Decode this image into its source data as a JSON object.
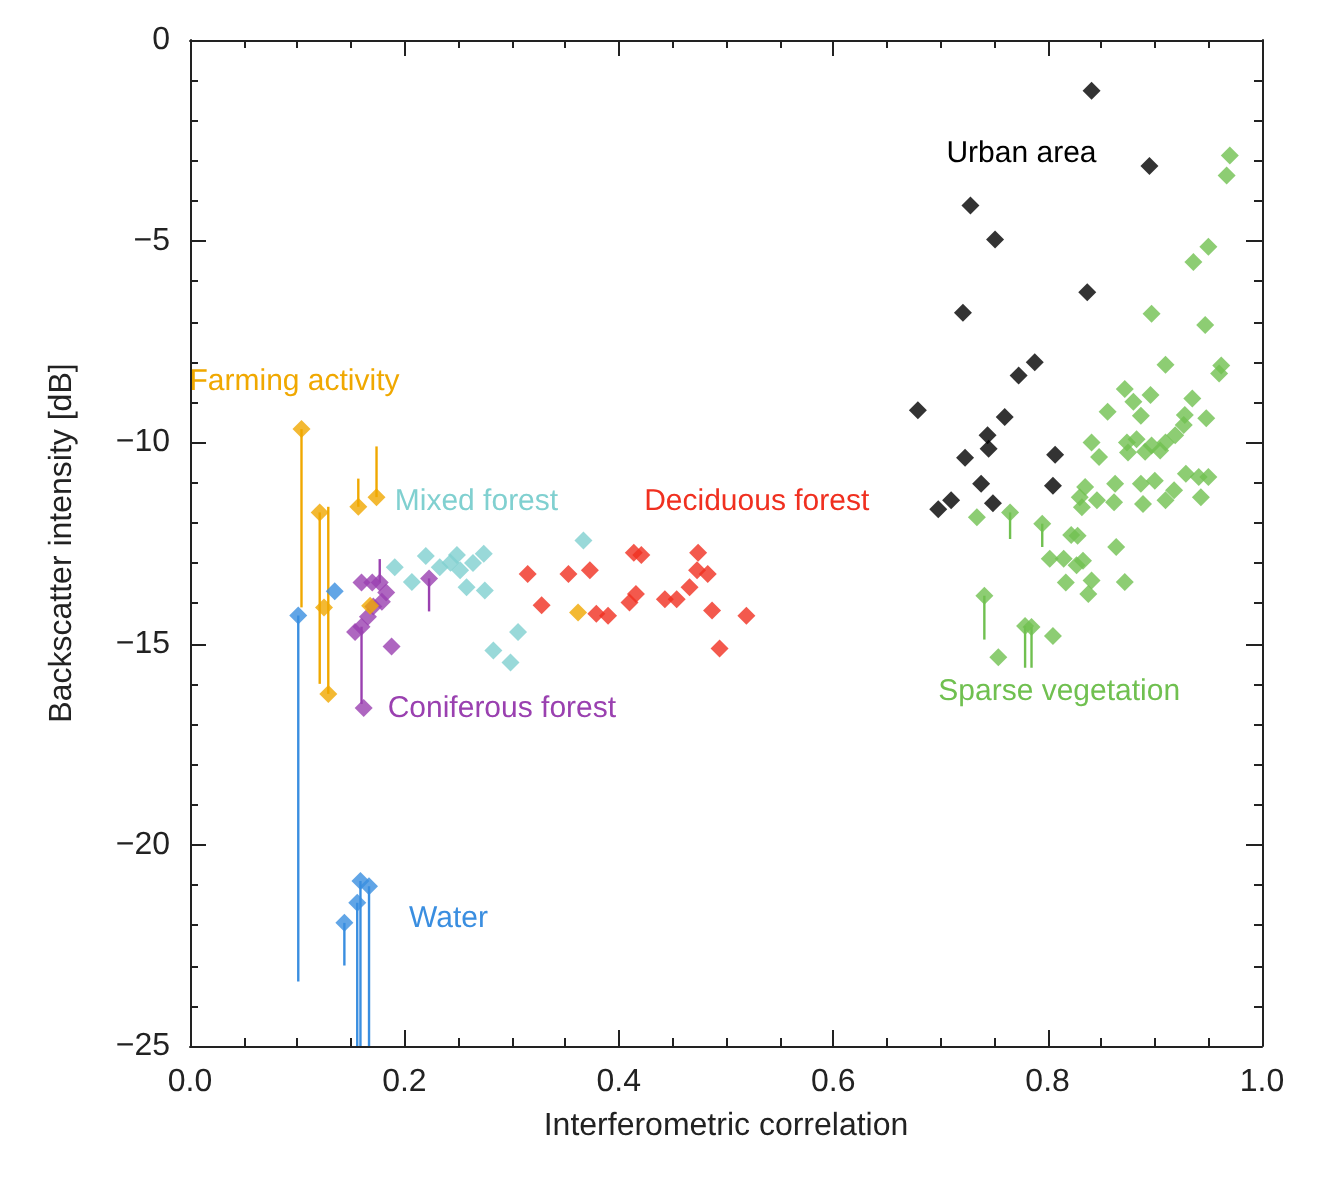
{
  "chart_data": {
    "type": "scatter",
    "xlabel": "Interferometric correlation",
    "ylabel": "Backscatter intensity [dB]",
    "xlim": [
      0,
      1
    ],
    "xticks": [
      {
        "value": 0,
        "label": "0.0"
      },
      {
        "value": 0.2,
        "label": "0.2"
      },
      {
        "value": 0.4,
        "label": "0.4"
      },
      {
        "value": 0.6,
        "label": "0.6"
      },
      {
        "value": 0.8,
        "label": "0.8"
      },
      {
        "value": 1,
        "label": "1.0"
      }
    ],
    "ylim": [
      -25,
      0
    ],
    "yticks": [
      {
        "value": -25,
        "label": "−25"
      },
      {
        "value": -20,
        "label": "−20"
      },
      {
        "value": -15,
        "label": "−15"
      },
      {
        "value": -10,
        "label": "−10"
      },
      {
        "value": -5,
        "label": "−5"
      },
      {
        "value": 0,
        "label": "0"
      }
    ],
    "grid": false,
    "marker": "diamond",
    "series": [
      {
        "name": "Farming activity",
        "color": "#f0a800",
        "x": [
          0.104,
          0.121,
          0.125,
          0.129,
          0.157,
          0.174,
          0.168,
          0.362
        ],
        "values": [
          -9.67,
          -11.74,
          -14.1,
          -16.25,
          -11.6,
          -11.36,
          -14.06,
          -14.23
        ],
        "errors": [
          [
            -14.1,
            -9.67
          ],
          [
            -16,
            -11.74
          ],
          null,
          [
            -16.25,
            -11.6
          ],
          [
            -11.6,
            -10.9
          ],
          [
            -11.36,
            -10.1
          ],
          null,
          null
        ]
      },
      {
        "name": "Mixed forest",
        "color": "#80d0d0",
        "x": [
          0.191,
          0.207,
          0.22,
          0.233,
          0.243,
          0.249,
          0.252,
          0.258,
          0.264,
          0.274,
          0.275,
          0.283,
          0.299,
          0.306,
          0.367
        ],
        "values": [
          -13.1,
          -13.47,
          -12.82,
          -13.1,
          -12.99,
          -12.8,
          -13.18,
          -13.6,
          -13,
          -12.77,
          -13.68,
          -15.17,
          -15.47,
          -14.71,
          -12.44
        ]
      },
      {
        "name": "Deciduous forest",
        "color": "#f03020",
        "x": [
          0.315,
          0.328,
          0.353,
          0.373,
          0.379,
          0.39,
          0.414,
          0.421,
          0.41,
          0.416,
          0.443,
          0.454,
          0.474,
          0.473,
          0.483,
          0.466,
          0.487,
          0.494,
          0.519
        ],
        "values": [
          -13.27,
          -14.05,
          -13.27,
          -13.18,
          -14.26,
          -14.31,
          -12.74,
          -12.8,
          -13.98,
          -13.77,
          -13.9,
          -13.9,
          -12.74,
          -13.18,
          -13.27,
          -13.6,
          -14.18,
          -15.12,
          -14.31
        ]
      },
      {
        "name": "Coniferous forest",
        "color": "#9a40b0",
        "x": [
          0.16,
          0.17,
          0.177,
          0.183,
          0.179,
          0.171,
          0.166,
          0.16,
          0.154,
          0.188,
          0.223,
          0.162
        ],
        "values": [
          -13.48,
          -13.48,
          -13.48,
          -13.73,
          -13.96,
          -14.08,
          -14.33,
          -14.58,
          -14.71,
          -15.07,
          -13.38,
          -16.6
        ],
        "errors": [
          null,
          null,
          [
            -13.48,
            -12.9
          ],
          null,
          null,
          null,
          null,
          [
            -16.5,
            -14.58
          ],
          null,
          null,
          [
            -14.2,
            -13.38
          ],
          null
        ]
      },
      {
        "name": "Water",
        "color": "#3a8ee0",
        "x": [
          0.101,
          0.135,
          0.144,
          0.156,
          0.159,
          0.167
        ],
        "values": [
          -14.3,
          -13.7,
          -21.94,
          -21.44,
          -20.9,
          -21.03
        ],
        "errors": [
          [
            -23.4,
            -14.3
          ],
          null,
          [
            -23,
            -21.94
          ],
          [
            -25,
            -21.44
          ],
          [
            -25,
            -20.9
          ],
          [
            -25,
            -21.03
          ]
        ]
      },
      {
        "name": "Urban area",
        "color": "#000000",
        "x": [
          0.841,
          0.895,
          0.728,
          0.751,
          0.837,
          0.721,
          0.788,
          0.773,
          0.679,
          0.76,
          0.744,
          0.723,
          0.745,
          0.807,
          0.738,
          0.805,
          0.749,
          0.71,
          0.698
        ],
        "values": [
          -1.26,
          -3.13,
          -4.11,
          -4.96,
          -6.27,
          -6.78,
          -8.01,
          -8.34,
          -9.2,
          -9.37,
          -9.82,
          -10.38,
          -10.16,
          -10.31,
          -11.03,
          -11.08,
          -11.51,
          -11.44,
          -11.66
        ]
      },
      {
        "name": "Sparse vegetation",
        "color": "#70c050",
        "x": [
          0.97,
          0.967,
          0.95,
          0.936,
          0.897,
          0.947,
          0.91,
          0.962,
          0.96,
          0.872,
          0.896,
          0.88,
          0.856,
          0.935,
          0.928,
          0.948,
          0.927,
          0.887,
          0.841,
          0.874,
          0.883,
          0.897,
          0.91,
          0.905,
          0.891,
          0.875,
          0.848,
          0.919,
          0.929,
          0.941,
          0.95,
          0.943,
          0.918,
          0.91,
          0.9,
          0.887,
          0.889,
          0.863,
          0.862,
          0.846,
          0.835,
          0.83,
          0.832,
          0.765,
          0.734,
          0.795,
          0.822,
          0.828,
          0.864,
          0.802,
          0.815,
          0.827,
          0.833,
          0.817,
          0.841,
          0.872,
          0.838,
          0.741,
          0.779,
          0.785,
          0.805,
          0.754
        ],
        "values": [
          -2.87,
          -3.37,
          -5.14,
          -5.52,
          -6.8,
          -7.08,
          -8.07,
          -8.09,
          -8.29,
          -8.67,
          -8.82,
          -8.99,
          -9.24,
          -8.91,
          -9.32,
          -9.4,
          -9.57,
          -9.34,
          -10,
          -10,
          -9.92,
          -10.08,
          -10,
          -10.2,
          -10.23,
          -10.25,
          -10.36,
          -9.82,
          -10.78,
          -10.86,
          -10.86,
          -11.36,
          -11.19,
          -11.44,
          -10.95,
          -11.03,
          -11.53,
          -11.03,
          -11.49,
          -11.44,
          -11.11,
          -11.36,
          -11.61,
          -11.74,
          -11.86,
          -12.02,
          -12.3,
          -12.32,
          -12.6,
          -12.89,
          -12.89,
          -13.05,
          -12.94,
          -13.48,
          -13.43,
          -13.47,
          -13.77,
          -13.81,
          -14.56,
          -14.59,
          -14.81,
          -15.34
        ],
        "errors": [
          null,
          null,
          null,
          null,
          null,
          null,
          null,
          null,
          null,
          null,
          null,
          null,
          null,
          null,
          null,
          null,
          null,
          null,
          null,
          null,
          null,
          null,
          null,
          null,
          null,
          null,
          null,
          null,
          null,
          null,
          null,
          null,
          null,
          null,
          null,
          null,
          null,
          null,
          null,
          null,
          null,
          null,
          null,
          [
            -12.4,
            -11.74
          ],
          null,
          [
            -12.6,
            -12.02
          ],
          null,
          null,
          null,
          null,
          null,
          null,
          null,
          null,
          null,
          null,
          null,
          [
            -14.9,
            -13.81
          ],
          [
            -15.6,
            -14.56
          ],
          [
            -15.6,
            -14.59
          ],
          null,
          null
        ]
      }
    ]
  }
}
